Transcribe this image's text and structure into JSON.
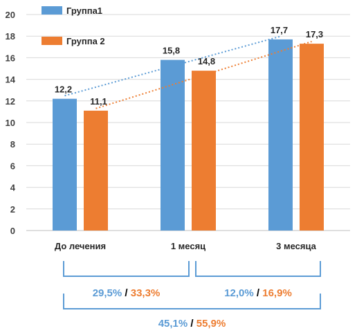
{
  "chart_data": {
    "type": "bar",
    "categories": [
      "До лечения",
      "1 месяц",
      "3 месяца"
    ],
    "series": [
      {
        "name": "Группа1",
        "values": [
          12.2,
          15.8,
          17.7
        ],
        "labels": [
          "12,2",
          "15,8",
          "17,7"
        ],
        "color": "#5b9bd5"
      },
      {
        "name": "Группа 2",
        "values": [
          11.1,
          14.8,
          17.3
        ],
        "labels": [
          "11,1",
          "14,8",
          "17,3"
        ],
        "color": "#ed7d31"
      }
    ],
    "ylim": [
      0,
      20
    ],
    "yticks": [
      "0",
      "2",
      "4",
      "6",
      "8",
      "10",
      "12",
      "14",
      "16",
      "18",
      "20"
    ],
    "grid": true,
    "legend_position": "top-left",
    "trendlines": "dotted",
    "comparisons": [
      {
        "from": 0,
        "to": 1,
        "value1": "29,5%",
        "value2": "33,3%"
      },
      {
        "from": 1,
        "to": 2,
        "value1": "12,0%",
        "value2": "16,9%"
      },
      {
        "from": 0,
        "to": 2,
        "value1": "45,1%",
        "value2": "55,9%"
      }
    ],
    "separator": "/",
    "separator_color": "#000000"
  }
}
